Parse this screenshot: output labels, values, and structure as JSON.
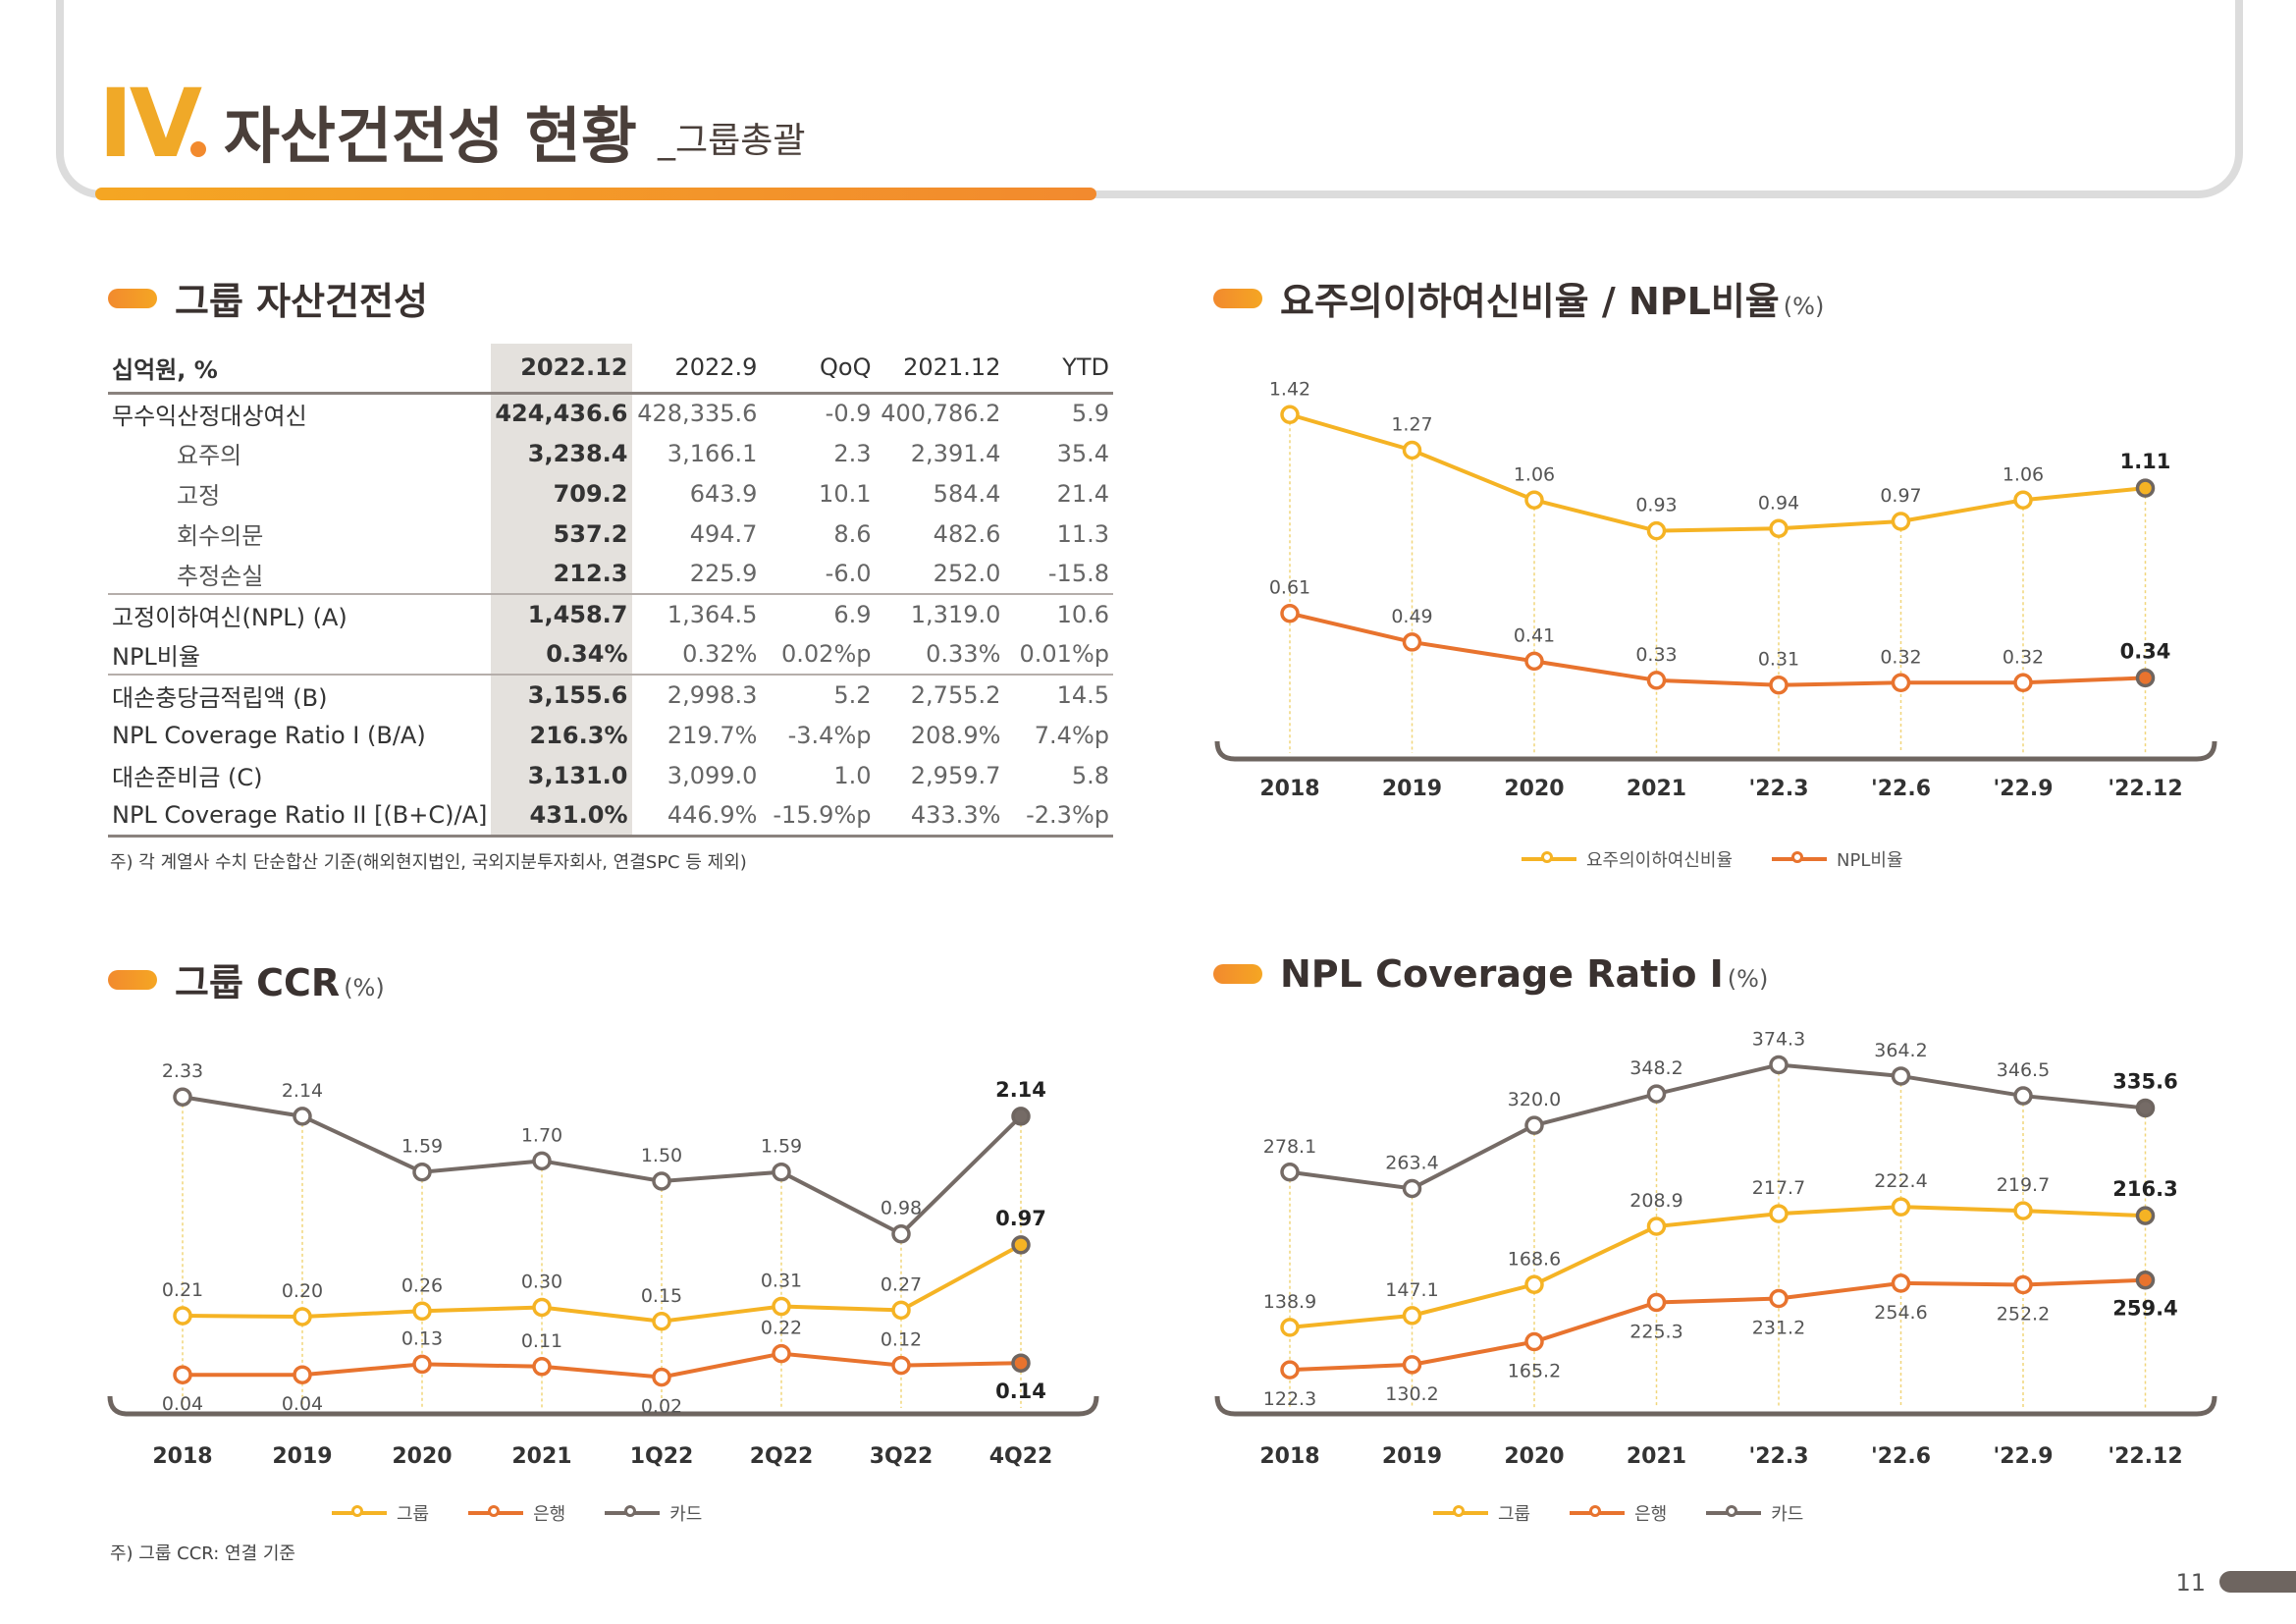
{
  "header": {
    "roman": "IV",
    "title": "자산건전성 현황",
    "subtitle": "_그룹총괄"
  },
  "asset_quality": {
    "title": "그룹 자산건전성",
    "columns": [
      "십억원, %",
      "2022.12",
      "2022.9",
      "QoQ",
      "2021.12",
      "YTD"
    ],
    "rows": [
      {
        "label": "무수익산정대상여신",
        "indent": false,
        "values": [
          "424,436.6",
          "428,335.6",
          "-0.9",
          "400,786.2",
          "5.9"
        ]
      },
      {
        "label": "요주의",
        "indent": true,
        "values": [
          "3,238.4",
          "3,166.1",
          "2.3",
          "2,391.4",
          "35.4"
        ]
      },
      {
        "label": "고정",
        "indent": true,
        "values": [
          "709.2",
          "643.9",
          "10.1",
          "584.4",
          "21.4"
        ]
      },
      {
        "label": "회수의문",
        "indent": true,
        "values": [
          "537.2",
          "494.7",
          "8.6",
          "482.6",
          "11.3"
        ]
      },
      {
        "label": "추정손실",
        "indent": true,
        "values": [
          "212.3",
          "225.9",
          "-6.0",
          "252.0",
          "-15.8"
        ]
      },
      {
        "label": "고정이하여신(NPL) (A)",
        "indent": false,
        "values": [
          "1,458.7",
          "1,364.5",
          "6.9",
          "1,319.0",
          "10.6"
        ]
      },
      {
        "label": "NPL비율",
        "indent": false,
        "values": [
          "0.34%",
          "0.32%",
          "0.02%p",
          "0.33%",
          "0.01%p"
        ]
      },
      {
        "label": "대손충당금적립액 (B)",
        "indent": false,
        "values": [
          "3,155.6",
          "2,998.3",
          "5.2",
          "2,755.2",
          "14.5"
        ]
      },
      {
        "label": "NPL Coverage Ratio I (B/A)",
        "indent": false,
        "values": [
          "216.3%",
          "219.7%",
          "-3.4%p",
          "208.9%",
          "7.4%p"
        ]
      },
      {
        "label": "대손준비금 (C)",
        "indent": false,
        "values": [
          "3,131.0",
          "3,099.0",
          "1.0",
          "2,959.7",
          "5.8"
        ]
      },
      {
        "label": "NPL Coverage  Ratio II [(B+C)/A]",
        "indent": false,
        "values": [
          "431.0%",
          "446.9%",
          "-15.9%p",
          "433.3%",
          "-2.3%p"
        ]
      }
    ],
    "note": "주) 각 계열사 수치 단순합산 기준(해외현지법인, 국외지분투자회사, 연결SPC 등 제외)"
  },
  "ccr_note": "주) 그룹 CCR: 연결 기준",
  "page_number": "11",
  "colors": {
    "yellow": "#f5b324",
    "orange": "#e8732e",
    "gray": "#756b66",
    "guide": "#f1d67a"
  },
  "chart_data": [
    {
      "id": "npl_ratio",
      "type": "line",
      "title": "요주의이하여신비율 / NPL비율",
      "unit": "(%)",
      "categories": [
        "2018",
        "2019",
        "2020",
        "2021",
        "'22.3",
        "'22.6",
        "'22.9",
        "'22.12"
      ],
      "series": [
        {
          "name": "요주의이하여신비율",
          "color": "#f5b324",
          "values": [
            1.42,
            1.27,
            1.06,
            0.93,
            0.94,
            0.97,
            1.06,
            1.11
          ],
          "labels": [
            "1.42",
            "1.27",
            "1.06",
            "0.93",
            "0.94",
            "0.97",
            "1.06",
            "1.11"
          ]
        },
        {
          "name": "NPL비율",
          "color": "#e8732e",
          "values": [
            0.61,
            0.49,
            0.41,
            0.33,
            0.31,
            0.32,
            0.32,
            0.34
          ],
          "labels": [
            "0.61",
            "0.49",
            "0.41",
            "0.33",
            "0.31",
            "0.32",
            "0.32",
            "0.34"
          ]
        }
      ],
      "legend": [
        "요주의이하여신비율",
        "NPL비율"
      ]
    },
    {
      "id": "ccr",
      "type": "line",
      "title": "그룹 CCR",
      "unit": "(%)",
      "categories": [
        "2018",
        "2019",
        "2020",
        "2021",
        "1Q22",
        "2Q22",
        "3Q22",
        "4Q22"
      ],
      "series": [
        {
          "name": "그룹",
          "color": "#f5b324",
          "values": [
            0.21,
            0.2,
            0.26,
            0.3,
            0.15,
            0.31,
            0.27,
            0.97
          ],
          "labels": [
            "0.21",
            "0.20",
            "0.26",
            "0.30",
            "0.15",
            "0.31",
            "0.27",
            "0.97"
          ]
        },
        {
          "name": "은행",
          "color": "#e8732e",
          "values": [
            0.04,
            0.04,
            0.13,
            0.11,
            0.02,
            0.22,
            0.12,
            0.14
          ],
          "labels": [
            "0.04",
            "0.04",
            "0.13",
            "0.11",
            "0.02",
            "0.22",
            "0.12",
            "0.14"
          ]
        },
        {
          "name": "카드",
          "color": "#756b66",
          "values": [
            2.33,
            2.14,
            1.59,
            1.7,
            1.5,
            1.59,
            0.98,
            2.14
          ],
          "labels": [
            "2.33",
            "2.14",
            "1.59",
            "1.70",
            "1.50",
            "1.59",
            "0.98",
            "2.14"
          ]
        }
      ],
      "legend": [
        "그룹",
        "은행",
        "카드"
      ]
    },
    {
      "id": "coverage",
      "type": "line",
      "title": "NPL Coverage Ratio I",
      "unit": "(%)",
      "categories": [
        "2018",
        "2019",
        "2020",
        "2021",
        "'22.3",
        "'22.6",
        "'22.9",
        "'22.12"
      ],
      "series": [
        {
          "name": "그룹",
          "color": "#f5b324",
          "values": [
            138.9,
            147.1,
            168.6,
            208.9,
            217.7,
            222.4,
            219.7,
            216.3
          ],
          "labels": [
            "138.9",
            "147.1",
            "168.6",
            "208.9",
            "217.7",
            "222.4",
            "219.7",
            "216.3"
          ]
        },
        {
          "name": "은행",
          "color": "#e8732e",
          "values": [
            122.3,
            130.2,
            165.2,
            225.3,
            231.2,
            254.6,
            252.2,
            259.4
          ],
          "labels": [
            "122.3",
            "130.2",
            "165.2",
            "225.3",
            "231.2",
            "254.6",
            "252.2",
            "259.4"
          ]
        },
        {
          "name": "카드",
          "color": "#756b66",
          "values": [
            278.1,
            263.4,
            320.0,
            348.2,
            374.3,
            364.2,
            346.5,
            335.6
          ],
          "labels": [
            "278.1",
            "263.4",
            "320.0",
            "348.2",
            "374.3",
            "364.2",
            "346.5",
            "335.6"
          ]
        }
      ],
      "legend": [
        "그룹",
        "은행",
        "카드"
      ]
    }
  ]
}
